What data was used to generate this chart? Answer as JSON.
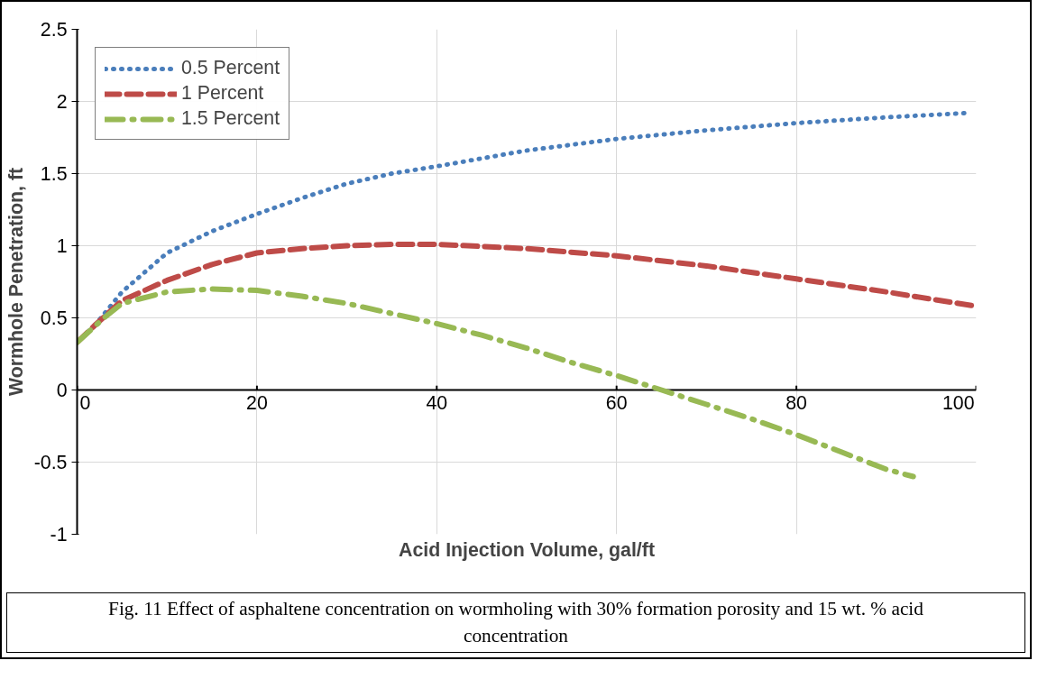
{
  "chart_data": {
    "type": "line",
    "xlabel": "Acid Injection Volume, gal/ft",
    "ylabel": "Wormhole Penetration, ft",
    "xlim": [
      0,
      100
    ],
    "ylim": [
      -1,
      2.5
    ],
    "xticks": [
      0,
      20,
      40,
      60,
      80,
      100
    ],
    "yticks": [
      -1,
      -0.5,
      0,
      0.5,
      1,
      1.5,
      2,
      2.5
    ],
    "grid": true,
    "legend": "top left",
    "series": [
      {
        "name": "0.5 Percent",
        "color": "#4a7ebb",
        "line_style": "dotted",
        "x": [
          0,
          2,
          5,
          10,
          15,
          20,
          25,
          30,
          35,
          40,
          50,
          60,
          70,
          80,
          90,
          99
        ],
        "values": [
          0.33,
          0.45,
          0.68,
          0.95,
          1.1,
          1.22,
          1.33,
          1.43,
          1.5,
          1.55,
          1.66,
          1.74,
          1.8,
          1.85,
          1.89,
          1.92
        ]
      },
      {
        "name": "1 Percent",
        "color": "#be4b48",
        "line_style": "dashed",
        "x": [
          0,
          2,
          5,
          10,
          15,
          20,
          25,
          30,
          35,
          40,
          50,
          60,
          70,
          80,
          90,
          100
        ],
        "values": [
          0.33,
          0.45,
          0.62,
          0.76,
          0.87,
          0.95,
          0.98,
          1.0,
          1.01,
          1.01,
          0.98,
          0.93,
          0.86,
          0.77,
          0.68,
          0.58
        ]
      },
      {
        "name": "1.5 Percent",
        "color": "#98b954",
        "line_style": "dashdot",
        "x": [
          0,
          3,
          5,
          10,
          15,
          20,
          25,
          30,
          35,
          40,
          45,
          50,
          55,
          60,
          65,
          70,
          75,
          80,
          85,
          90,
          93
        ],
        "values": [
          0.33,
          0.5,
          0.6,
          0.68,
          0.7,
          0.69,
          0.65,
          0.6,
          0.53,
          0.46,
          0.38,
          0.29,
          0.19,
          0.1,
          0.0,
          -0.1,
          -0.2,
          -0.31,
          -0.43,
          -0.55,
          -0.6
        ]
      }
    ],
    "annotations": [
      "Fig. 11 Effect of asphaltene concentration on wormholing with 30% formation porosity and 15 wt. % acid concentration"
    ]
  }
}
